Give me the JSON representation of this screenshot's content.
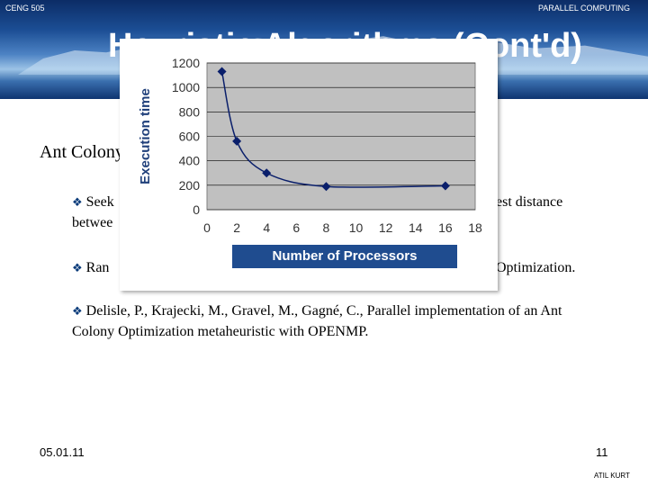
{
  "header": {
    "course": "CENG 505",
    "subject": "PARALLEL COMPUTING"
  },
  "title": "Heuristic Algorithms (Cont'd)",
  "subheading": "Ant Colony Optimization",
  "bullets": [
    {
      "line1": "Seek",
      "right1": "est distance",
      "line2": "betwee"
    },
    {
      "line1": "Ran",
      "right1": "Optimization."
    },
    {
      "text": "Delisle, P., Krajecki, M., Gravel, M., Gagné, C., Parallel implementation of an Ant  Colony Optimization metaheuristic with OPENMP."
    }
  ],
  "footer": {
    "date": "05.01.11",
    "page": "11",
    "author": "ATIL KURT"
  },
  "chart_data": {
    "type": "line",
    "xlabel": "Number of Processors",
    "ylabel": "Execution time",
    "x": [
      1,
      2,
      4,
      8,
      16
    ],
    "series": [
      {
        "values": [
          1130,
          560,
          300,
          190,
          195
        ]
      }
    ],
    "xlim": [
      0,
      18
    ],
    "ylim": [
      0,
      1200
    ],
    "xticks": [
      0,
      2,
      4,
      6,
      8,
      10,
      12,
      14,
      16,
      18
    ],
    "yticks": [
      0,
      200,
      400,
      600,
      800,
      1000,
      1200
    ],
    "grid": "horizontal",
    "colors": {
      "line": "#0a1f6b",
      "plot_bg": "#c0c0c0",
      "label_box": "#1f4c8f"
    }
  }
}
